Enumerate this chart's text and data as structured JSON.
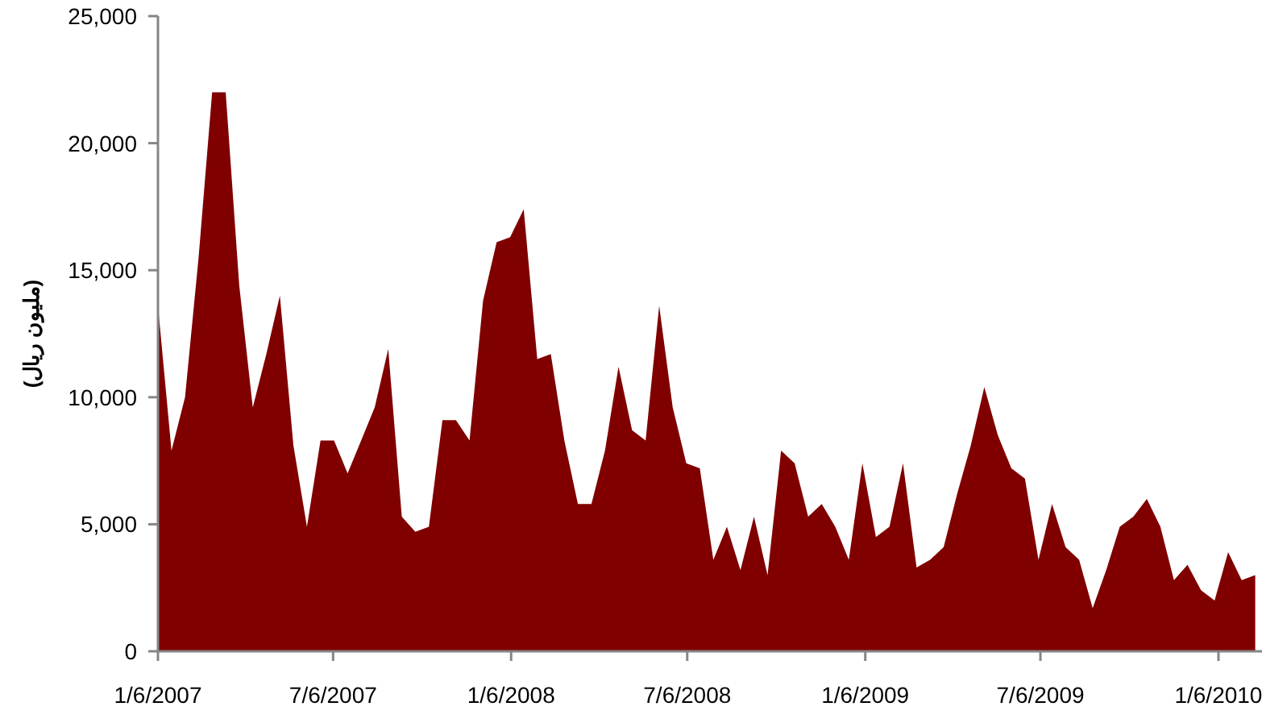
{
  "chart_data": {
    "type": "area",
    "ylabel": "(مليون ريال)",
    "x": [
      "2007-01-06",
      "2007-01-20",
      "2007-02-03",
      "2007-02-17",
      "2007-03-03",
      "2007-03-17",
      "2007-03-31",
      "2007-04-14",
      "2007-04-28",
      "2007-05-12",
      "2007-05-26",
      "2007-06-09",
      "2007-06-23",
      "2007-07-07",
      "2007-07-21",
      "2007-08-04",
      "2007-08-18",
      "2007-09-01",
      "2007-09-15",
      "2007-09-29",
      "2007-10-13",
      "2007-10-27",
      "2007-11-10",
      "2007-11-24",
      "2007-12-08",
      "2007-12-22",
      "2008-01-05",
      "2008-01-19",
      "2008-02-02",
      "2008-02-16",
      "2008-03-01",
      "2008-03-15",
      "2008-03-29",
      "2008-04-12",
      "2008-04-26",
      "2008-05-10",
      "2008-05-24",
      "2008-06-07",
      "2008-06-21",
      "2008-07-05",
      "2008-07-19",
      "2008-08-02",
      "2008-08-16",
      "2008-08-30",
      "2008-09-13",
      "2008-09-27",
      "2008-10-11",
      "2008-10-25",
      "2008-11-08",
      "2008-11-22",
      "2008-12-06",
      "2008-12-20",
      "2009-01-03",
      "2009-01-17",
      "2009-01-31",
      "2009-02-14",
      "2009-02-28",
      "2009-03-14",
      "2009-03-28",
      "2009-04-11",
      "2009-04-25",
      "2009-05-09",
      "2009-05-23",
      "2009-06-06",
      "2009-06-20",
      "2009-07-04",
      "2009-07-18",
      "2009-08-01",
      "2009-08-15",
      "2009-08-29",
      "2009-09-12",
      "2009-09-26",
      "2009-10-10",
      "2009-10-24",
      "2009-11-07",
      "2009-11-21",
      "2009-12-05",
      "2009-12-19",
      "2010-01-02",
      "2010-01-16",
      "2010-01-30",
      "2010-02-13"
    ],
    "series": [
      {
        "color": "#800000",
        "values": [
          13600,
          7900,
          10000,
          15500,
          22000,
          22000,
          14400,
          9600,
          11700,
          14000,
          8100,
          4900,
          8300,
          8300,
          7000,
          8300,
          9600,
          11900,
          5300,
          4700,
          4900,
          9100,
          9100,
          8300,
          13800,
          16100,
          16300,
          17400,
          11500,
          11700,
          8300,
          5800,
          5800,
          7900,
          11200,
          8700,
          8300,
          13600,
          9600,
          7400,
          7200,
          3600,
          4900,
          3200,
          5300,
          3000,
          7900,
          7400,
          5300,
          5800,
          4900,
          3600,
          7400,
          4500,
          4900,
          7400,
          3300,
          3600,
          4100,
          6200,
          8100,
          10400,
          8500,
          7200,
          6800,
          3600,
          5800,
          4100,
          3600,
          1700,
          3200,
          4900,
          5300,
          6000,
          4900,
          2800,
          3400,
          2400,
          2000,
          3900,
          2800,
          3000
        ]
      }
    ],
    "xlim": [
      "2007-01-06",
      "2010-02-20"
    ],
    "xticks": [
      {
        "value": "2007-01-06",
        "label": "1/6/2007"
      },
      {
        "value": "2007-07-06",
        "label": "7/6/2007"
      },
      {
        "value": "2008-01-06",
        "label": "1/6/2008"
      },
      {
        "value": "2008-07-06",
        "label": "7/6/2008"
      },
      {
        "value": "2009-01-06",
        "label": "1/6/2009"
      },
      {
        "value": "2009-07-06",
        "label": "7/6/2009"
      },
      {
        "value": "2010-01-06",
        "label": "1/6/2010"
      }
    ],
    "ylim": [
      0,
      25000
    ],
    "yticks": [
      0,
      {
        "value": 5000,
        "label": "5,000"
      },
      {
        "value": 10000,
        "label": "10,000"
      },
      {
        "value": 15000,
        "label": "15,000"
      },
      {
        "value": 20000,
        "label": "20,000"
      },
      {
        "value": 25000,
        "label": "25,000"
      }
    ],
    "grid": false
  }
}
